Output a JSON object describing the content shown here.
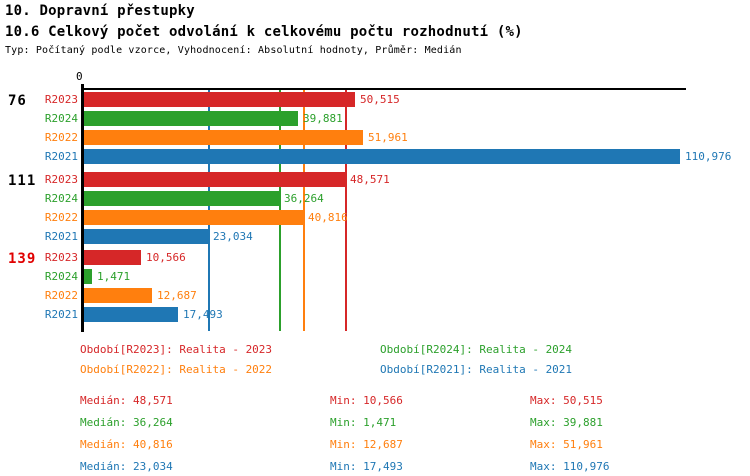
{
  "header": {
    "title": "10. Dopravní přestupky",
    "subtitle": "10.6 Celkový počet odvolání k celkovému počtu rozhodnutí (%)",
    "meta": "Typ: Počítaný podle vzorce, Vyhodnocení: Absolutní hodnoty, Průměr: Medián"
  },
  "chart_data": {
    "type": "bar",
    "orientation": "horizontal",
    "value_axis": {
      "zero_label": "0",
      "min": 0,
      "max": 110976,
      "gridlines": "median-only"
    },
    "legend_position": "bottom",
    "series": [
      {
        "id": "R2023",
        "label": "R2023",
        "color": "#d62728",
        "legend_label": "Období[R2023]: Realita - 2023",
        "median": 48571,
        "min": 10566,
        "max": 50515,
        "median_display": "48,571",
        "min_display": "10,566",
        "max_display": "50,515"
      },
      {
        "id": "R2024",
        "label": "R2024",
        "color": "#2ca02c",
        "legend_label": "Období[R2024]: Realita - 2024",
        "median": 36264,
        "min": 1471,
        "max": 39881,
        "median_display": "36,264",
        "min_display": "1,471",
        "max_display": "39,881"
      },
      {
        "id": "R2022",
        "label": "R2022",
        "color": "#ff7f0e",
        "legend_label": "Období[R2022]: Realita - 2022",
        "median": 40816,
        "min": 12687,
        "max": 51961,
        "median_display": "40,816",
        "min_display": "12,687",
        "max_display": "51,961"
      },
      {
        "id": "R2021",
        "label": "R2021",
        "color": "#1f77b4",
        "legend_label": "Období[R2021]: Realita - 2021",
        "median": 23034,
        "min": 17493,
        "max": 110976,
        "median_display": "23,034",
        "min_display": "17,493",
        "max_display": "110,976"
      }
    ],
    "groups": [
      {
        "label": "76",
        "label_color": "#000000",
        "values": [
          50515,
          39881,
          51961,
          110976
        ],
        "displays": [
          "50,515",
          "39,881",
          "51,961",
          "110,976"
        ]
      },
      {
        "label": "111",
        "label_color": "#000000",
        "values": [
          48571,
          36264,
          40816,
          23034
        ],
        "displays": [
          "48,571",
          "36,264",
          "40,816",
          "23,034"
        ]
      },
      {
        "label": "139",
        "label_color": "#e00000",
        "values": [
          10566,
          1471,
          12687,
          17493
        ],
        "displays": [
          "10,566",
          "1,471",
          "12,687",
          "17,493"
        ]
      }
    ],
    "stats_labels": {
      "median": "Medián:",
      "min": "Min:",
      "max": "Max:"
    }
  }
}
